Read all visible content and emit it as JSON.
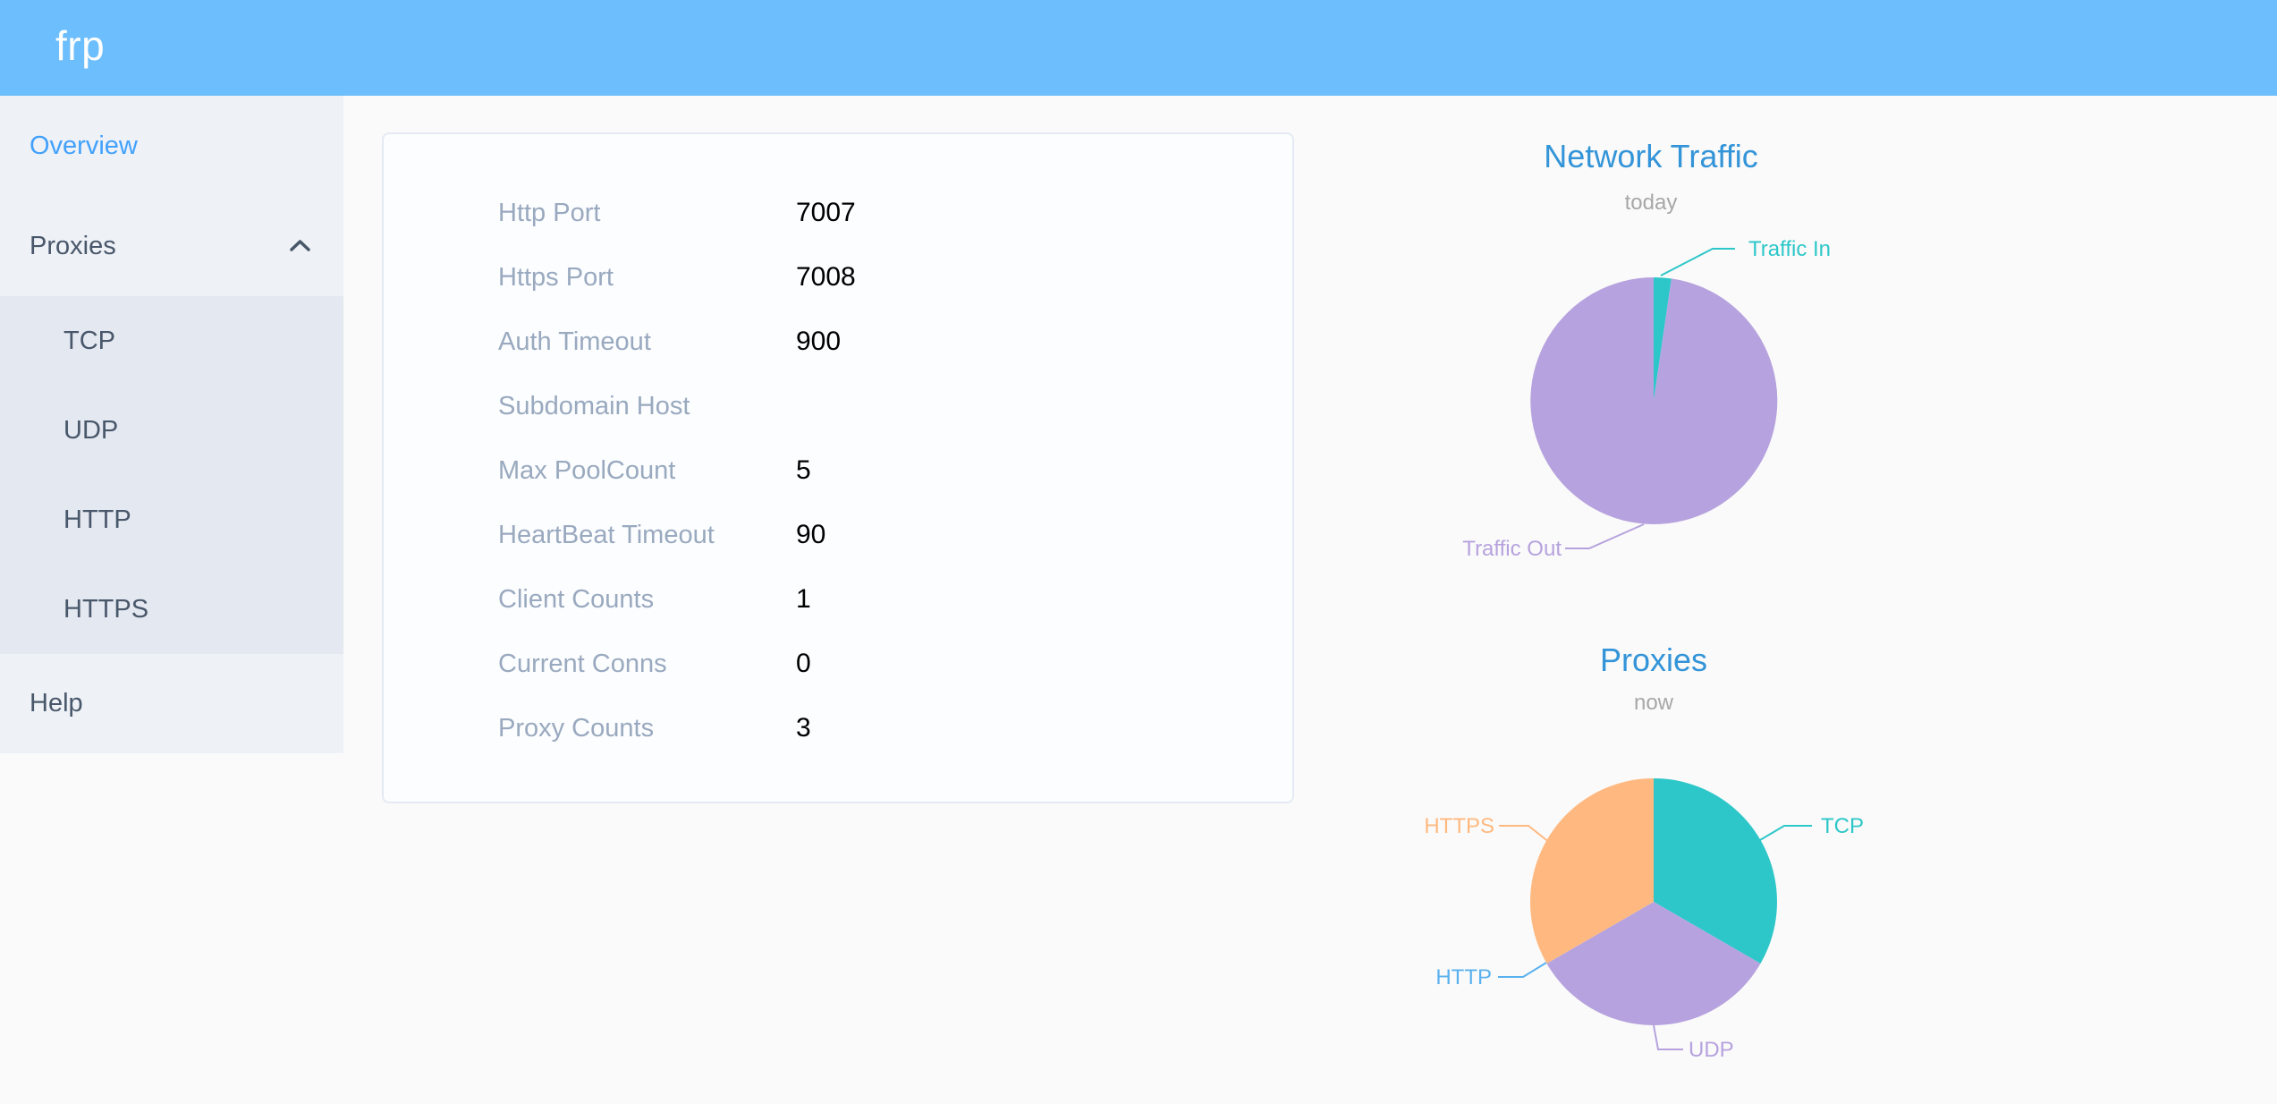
{
  "colors": {
    "header_bg": "#6dbefc",
    "menu_active": "#42a1fd",
    "title_blue": "#3394d8",
    "subtitle_gray": "#a7a7a7"
  },
  "header": {
    "logo": "frp"
  },
  "sidebar": {
    "items": [
      {
        "label": "Overview",
        "active": true
      },
      {
        "label": "Proxies",
        "expanded": true
      },
      {
        "label": "Help"
      }
    ],
    "proxies_submenu": [
      {
        "label": "TCP"
      },
      {
        "label": "UDP"
      },
      {
        "label": "HTTP"
      },
      {
        "label": "HTTPS"
      }
    ]
  },
  "config_card": {
    "rows": [
      {
        "label": "Http Port",
        "value": "7007"
      },
      {
        "label": "Https Port",
        "value": "7008"
      },
      {
        "label": "Auth Timeout",
        "value": "900"
      },
      {
        "label": "Subdomain Host",
        "value": ""
      },
      {
        "label": "Max PoolCount",
        "value": "5"
      },
      {
        "label": "HeartBeat Timeout",
        "value": "90"
      },
      {
        "label": "Client Counts",
        "value": "1"
      },
      {
        "label": "Current Conns",
        "value": "0"
      },
      {
        "label": "Proxy Counts",
        "value": "3"
      }
    ]
  },
  "chart_data": [
    {
      "type": "pie",
      "title": "Network Traffic",
      "subtitle": "today",
      "labels": [
        "Traffic In",
        "Traffic Out"
      ],
      "values_percent": [
        2.3,
        97.7
      ],
      "colors": [
        "#2ec7c9",
        "#b6a2de"
      ],
      "legend": false,
      "label_layout": "outside-leader-lines"
    },
    {
      "type": "pie",
      "title": "Proxies",
      "subtitle": "now",
      "labels": [
        "TCP",
        "UDP",
        "HTTP",
        "HTTPS"
      ],
      "values": [
        1,
        1,
        0,
        1
      ],
      "colors": [
        "#2ec7c9",
        "#b6a2de",
        "#5ab1ef",
        "#ffb980"
      ],
      "legend": false,
      "label_layout": "outside-leader-lines"
    }
  ]
}
